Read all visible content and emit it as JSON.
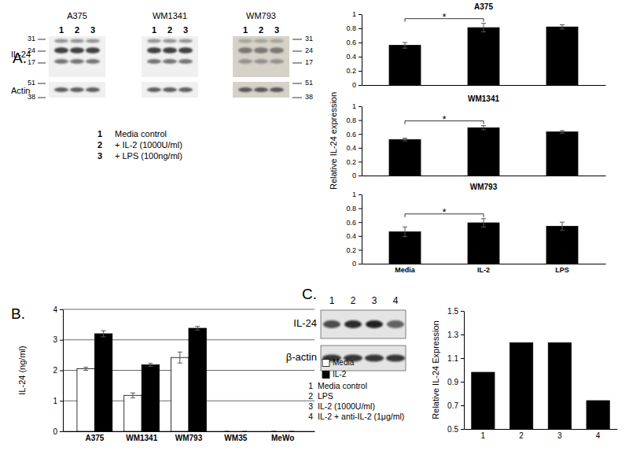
{
  "panel_labels": [
    "A.",
    "B.",
    "C."
  ],
  "blot_a": {
    "columns": [
      "A375",
      "WM1341",
      "WM793"
    ],
    "lanes": [
      1,
      2,
      3
    ],
    "rows": [
      "IL-24",
      "Actin"
    ],
    "markers": [
      31,
      24,
      17,
      51,
      38
    ],
    "key": [
      {
        "lane": 1,
        "text": "Media control"
      },
      {
        "lane": 2,
        "text": "+ IL-2 (1000U/ml)"
      },
      {
        "lane": 3,
        "text": "+ LPS (100ng/ml)"
      }
    ]
  },
  "blot_c": {
    "lanes": [
      1,
      2,
      3,
      4
    ],
    "rows": [
      "IL-24",
      "β-actin"
    ],
    "key": [
      {
        "lane": 1,
        "text": "Media control"
      },
      {
        "lane": 2,
        "text": "LPS"
      },
      {
        "lane": 3,
        "text": "IL-2 (1000U/ml)"
      },
      {
        "lane": 4,
        "text": "IL-2 + anti-IL-2 (1μg/ml)"
      }
    ]
  },
  "chart_data": [
    {
      "type": "bar",
      "title": "A375",
      "categories": [
        null,
        null,
        null
      ],
      "values": [
        0.56,
        0.81,
        0.82
      ],
      "errors": [
        0.04,
        0.06,
        0.03
      ],
      "color": "#000000",
      "ylim": [
        0,
        1
      ],
      "yticks": [
        0,
        0.2,
        0.4,
        0.6,
        0.8,
        1
      ],
      "grid": false,
      "annotations": [
        {
          "text": "*",
          "from": 0,
          "to": 1
        }
      ]
    },
    {
      "type": "bar",
      "title": "WM1341",
      "ylabel": "Relative IL-24 expression",
      "categories": [
        null,
        null,
        null
      ],
      "values": [
        0.52,
        0.69,
        0.63
      ],
      "errors": [
        0.02,
        0.03,
        0.02
      ],
      "color": "#000000",
      "ylim": [
        0,
        1
      ],
      "yticks": [
        0,
        0.2,
        0.4,
        0.6,
        0.8,
        1
      ],
      "grid": false,
      "annotations": [
        {
          "text": "*",
          "from": 0,
          "to": 1
        }
      ]
    },
    {
      "type": "bar",
      "title": "WM793",
      "categories": [
        "Media",
        "IL-2",
        "LPS"
      ],
      "values": [
        0.46,
        0.59,
        0.54
      ],
      "errors": [
        0.07,
        0.06,
        0.06
      ],
      "color": "#000000",
      "ylim": [
        0,
        1
      ],
      "yticks": [
        0,
        0.2,
        0.4,
        0.6,
        0.8,
        1
      ],
      "grid": false,
      "annotations": [
        {
          "text": "*",
          "from": 0,
          "to": 1
        }
      ]
    },
    {
      "type": "bar",
      "ylabel": "IL-24 (ng/ml)",
      "categories": [
        "A375",
        "WM1341",
        "WM793",
        "WM35",
        "MeWo"
      ],
      "series": [
        {
          "name": "Media",
          "color": "#ffffff",
          "values": [
            2.05,
            1.18,
            2.42,
            0,
            0
          ],
          "errors": [
            0.05,
            0.08,
            0.18,
            0,
            0
          ]
        },
        {
          "name": "IL-2",
          "color": "#000000",
          "values": [
            3.2,
            2.18,
            3.38,
            0,
            0
          ],
          "errors": [
            0.1,
            0.05,
            0.06,
            0,
            0
          ]
        }
      ],
      "ylim": [
        0,
        4
      ],
      "yticks": [
        0,
        1,
        2,
        3,
        4
      ],
      "grid": true,
      "legend": "right"
    },
    {
      "type": "bar",
      "ylabel": "Relative IL-24 Expression",
      "categories": [
        "1",
        "2",
        "3",
        "4"
      ],
      "values": [
        0.98,
        1.23,
        1.23,
        0.74
      ],
      "color": "#000000",
      "ylim": [
        0.5,
        1.5
      ],
      "yticks": [
        0.5,
        0.7,
        0.9,
        1.1,
        1.3,
        1.5
      ],
      "grid": false
    }
  ]
}
